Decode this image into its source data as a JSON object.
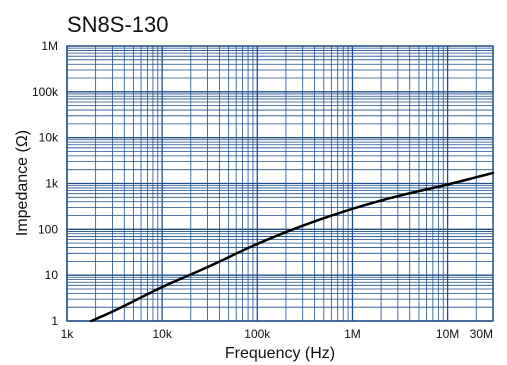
{
  "chart_data": {
    "type": "line",
    "title": "SN8S-130",
    "xlabel": "Frequency (Hz)",
    "ylabel": "Impedance (Ω)",
    "x_scale": "log",
    "y_scale": "log",
    "xlim": [
      1000,
      30000000
    ],
    "ylim": [
      1,
      1000000
    ],
    "x_ticks": [
      {
        "value": 1000,
        "label": "1k"
      },
      {
        "value": 10000,
        "label": "10k"
      },
      {
        "value": 100000,
        "label": "100k"
      },
      {
        "value": 1000000,
        "label": "1M"
      },
      {
        "value": 10000000,
        "label": "10M"
      },
      {
        "value": 30000000,
        "label": "30M"
      }
    ],
    "y_ticks": [
      {
        "value": 1,
        "label": "1"
      },
      {
        "value": 10,
        "label": "10"
      },
      {
        "value": 100,
        "label": "100"
      },
      {
        "value": 1000,
        "label": "1k"
      },
      {
        "value": 10000,
        "label": "10k"
      },
      {
        "value": 100000,
        "label": "100k"
      },
      {
        "value": 1000000,
        "label": "1M"
      }
    ],
    "grid": true,
    "colors": {
      "grid": "#1f4e8c",
      "line": "#000000"
    },
    "series": [
      {
        "x": [
          1800,
          3000,
          10000,
          30000,
          100000,
          300000,
          1000000,
          3000000,
          10000000,
          30000000
        ],
        "y": [
          1.0,
          1.6,
          5.5,
          15,
          48,
          120,
          280,
          530,
          950,
          1700
        ]
      }
    ]
  }
}
